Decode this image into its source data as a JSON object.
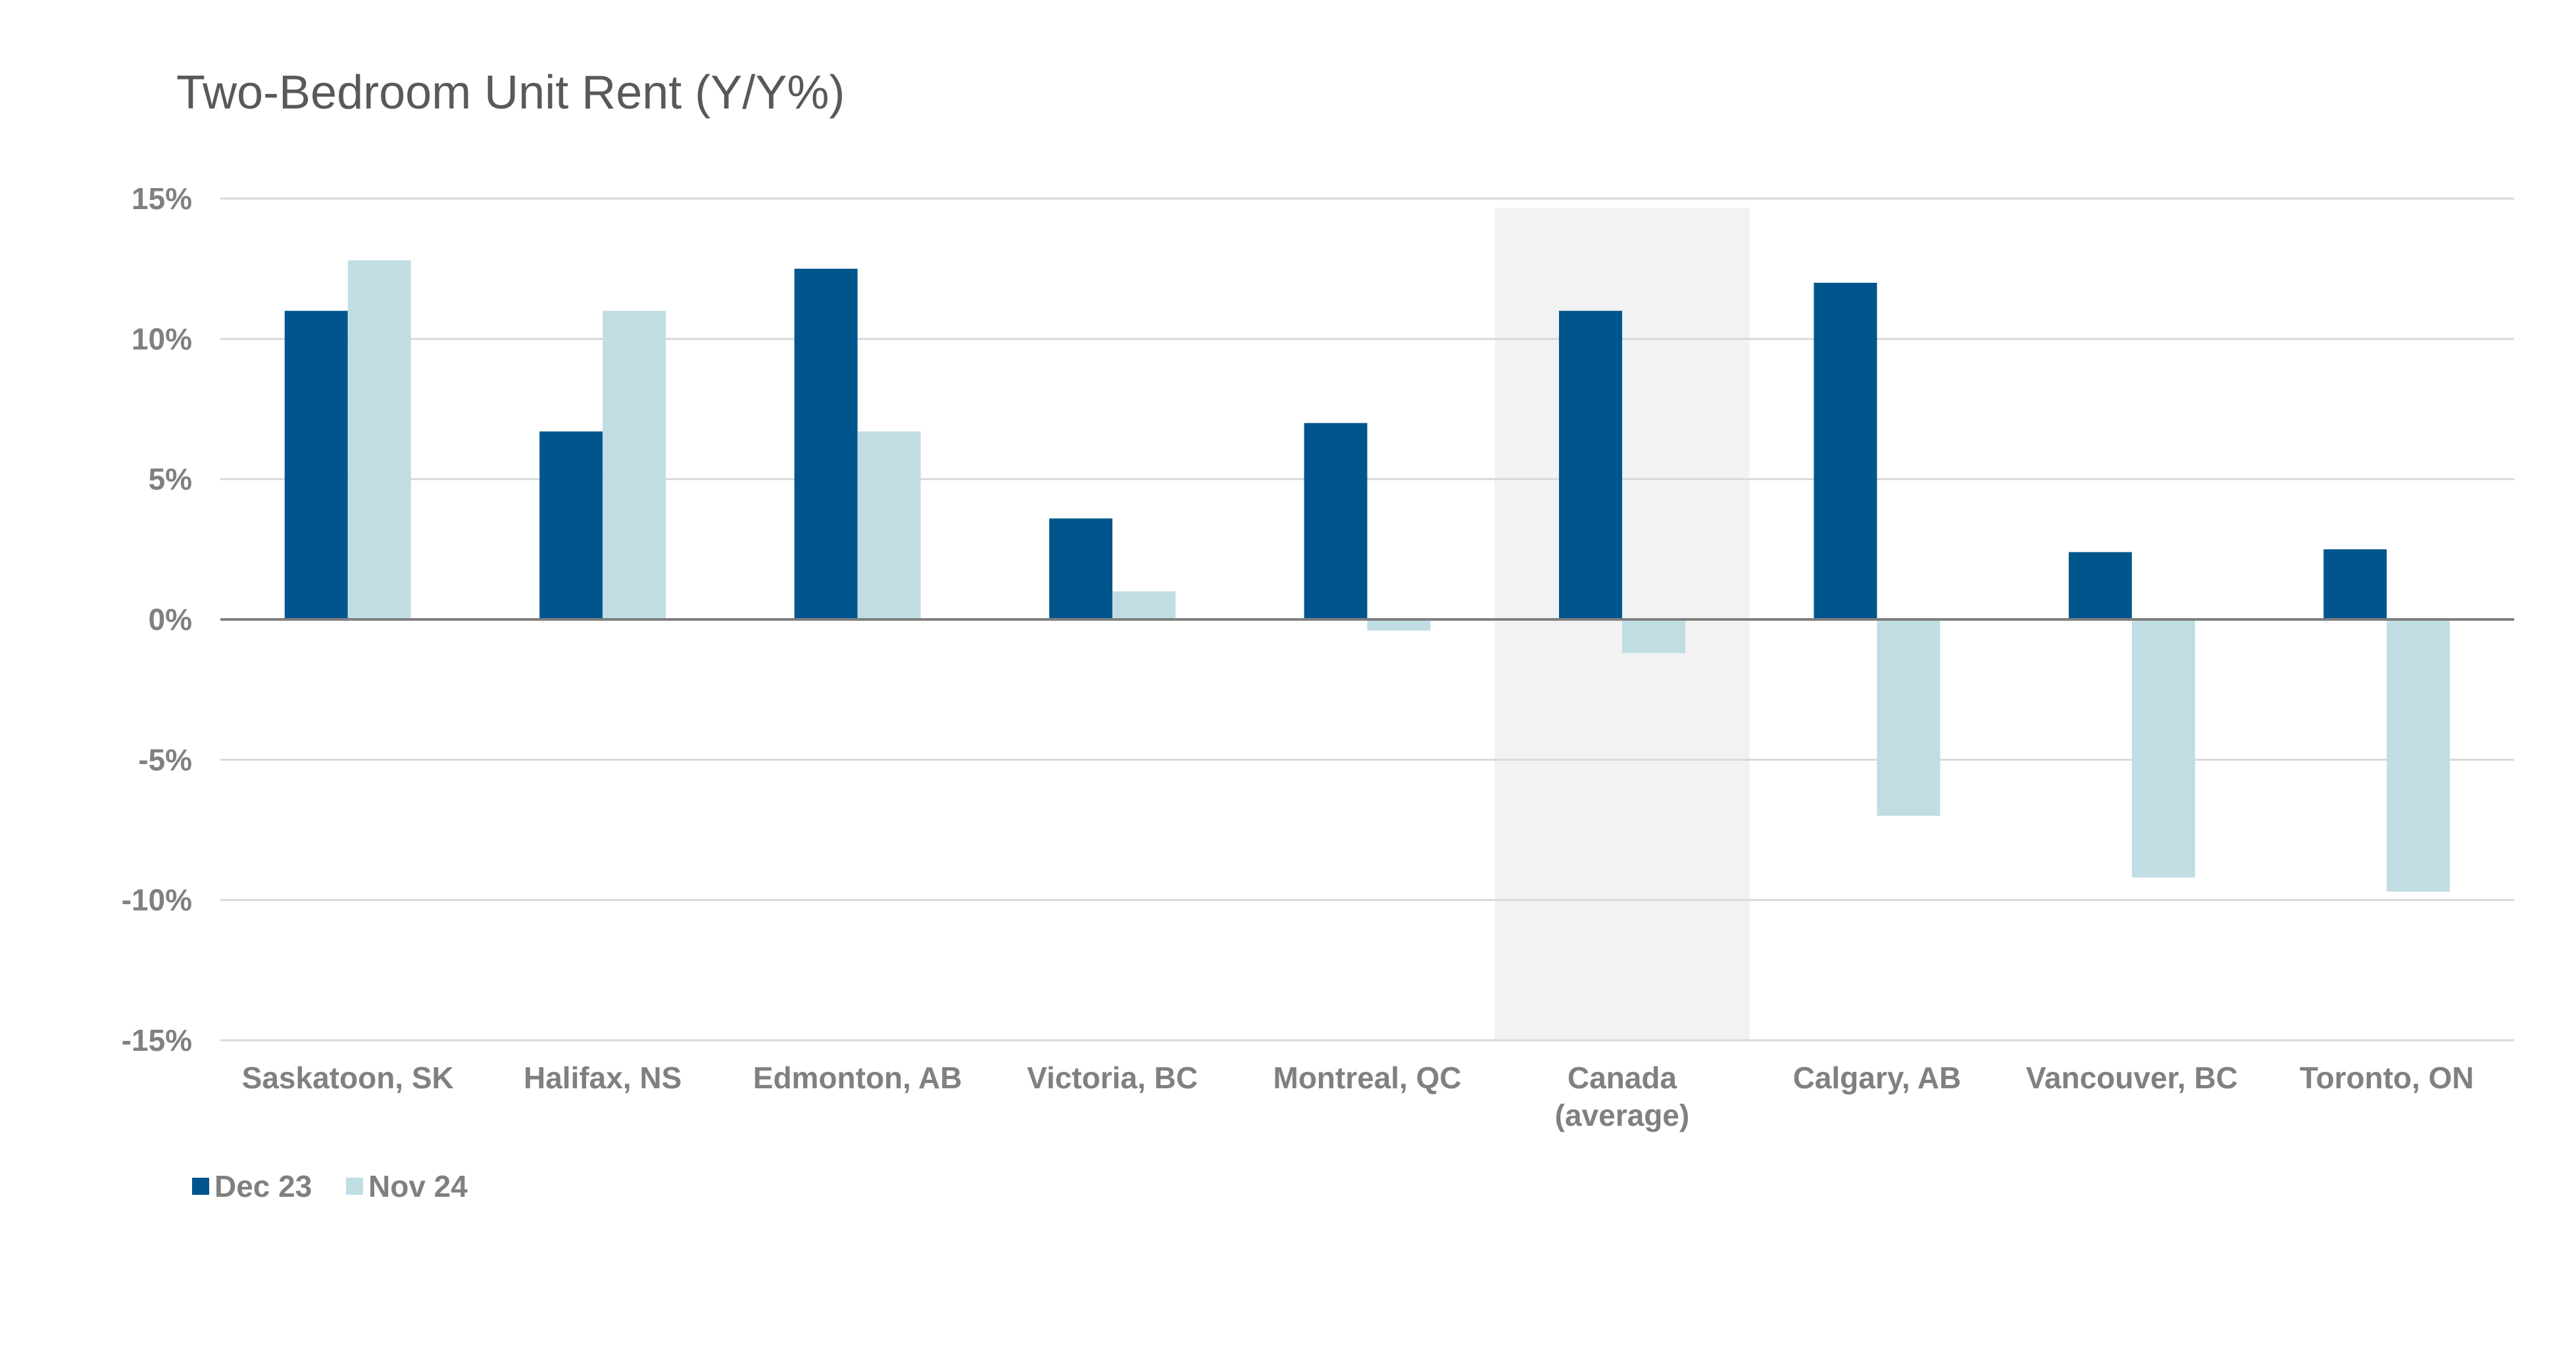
{
  "chart_data": {
    "type": "bar",
    "title": "Two-Bedroom Unit Rent (Y/Y%)",
    "categories": [
      [
        "Saskatoon, SK"
      ],
      [
        "Halifax, NS"
      ],
      [
        "Edmonton, AB"
      ],
      [
        "Victoria, BC"
      ],
      [
        "Montreal, QC"
      ],
      [
        "Canada",
        "(average)"
      ],
      [
        "Calgary, AB"
      ],
      [
        "Vancouver, BC"
      ],
      [
        "Toronto, ON"
      ]
    ],
    "series": [
      {
        "name": "Dec 23",
        "color": "#00568C",
        "values": [
          11.0,
          6.7,
          12.5,
          3.6,
          7.0,
          11.0,
          12.0,
          2.4,
          2.5
        ]
      },
      {
        "name": "Nov 24",
        "color": "#C0DDE4",
        "values": [
          12.8,
          11.0,
          6.7,
          1.0,
          -0.4,
          -1.2,
          -7.0,
          -9.2,
          -9.7
        ]
      }
    ],
    "ylim": [
      -15,
      15
    ],
    "yticks": [
      15,
      10,
      5,
      0,
      -5,
      -10,
      -15
    ],
    "ytick_labels": [
      "15%",
      "10%",
      "5%",
      "0%",
      "-5%",
      "-10%",
      "-15%"
    ],
    "highlighted_category": 5,
    "highlight_color": "#F2F2F2",
    "grid": true,
    "legend": "bottom-left",
    "xlabel": "",
    "ylabel": ""
  }
}
